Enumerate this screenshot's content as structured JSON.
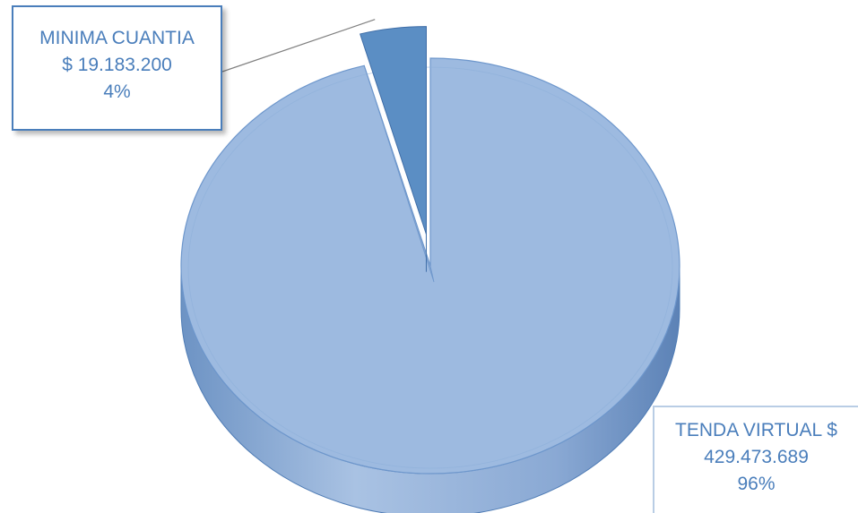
{
  "chart_data": {
    "type": "pie",
    "style": "3d-exploded",
    "slices": [
      {
        "category": "TENDA VIRTUAL",
        "value_text": "$ 429.473.689",
        "value": 429473689,
        "percent": 96,
        "percent_label": "96%",
        "color": "#9dbae0"
      },
      {
        "category": "MINIMA CUANTIA",
        "value_text": "$ 19.183.200",
        "value": 19183200,
        "percent": 4,
        "percent_label": "4%",
        "color": "#5b8ec4"
      }
    ],
    "labels": {
      "min": {
        "name": "MINIMA CUANTIA",
        "amount": "$ 19.183.200",
        "percent": "4%"
      },
      "tenda": {
        "line1": "TENDA VIRTUAL  $",
        "line2": "429.473.689",
        "line3": "96%"
      }
    },
    "colors": {
      "label_text": "#4a7ebb",
      "label_border": "#4a7ebb",
      "leader_line": "#808080"
    }
  }
}
